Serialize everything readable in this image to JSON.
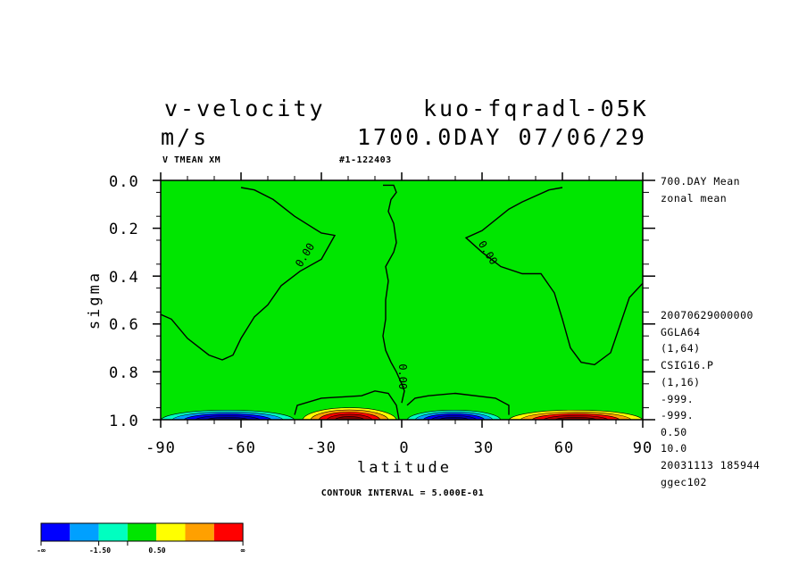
{
  "header": {
    "variable": "v-velocity",
    "experiment": "kuo-fqradl-05K",
    "units": "m/s",
    "time_label": "1700.0DAY 07/06/29",
    "field_name": "V TMEAN XM",
    "run_id": "#1-122403"
  },
  "side_info": {
    "average": "700.DAY Mean",
    "average_type": "zonal mean",
    "lines": [
      "20070629000000",
      "GGLA64",
      "(1,64)",
      "CSIG16.P",
      "(1,16)",
      "-999.",
      "-999.",
      "0.50",
      "10.0",
      "20031113 185944",
      "ggec102"
    ]
  },
  "footer": {
    "contour_interval": "CONTOUR INTERVAL = 5.000E-01"
  },
  "colors": {
    "background_field": "#00e600",
    "lines": "#000000"
  },
  "legend": {
    "colors": [
      "#0000ff",
      "#00a0ff",
      "#00ffc0",
      "#00e600",
      "#ffff00",
      "#ffa000",
      "#ff0000"
    ],
    "labels": [
      "-∞",
      "-1.50",
      "0.50",
      "∞"
    ]
  },
  "chart_data": {
    "type": "heatmap",
    "title": "v-velocity",
    "xlabel": "latitude",
    "ylabel": "sigma",
    "xlim": [
      -90,
      90
    ],
    "ylim": [
      1.0,
      0.0
    ],
    "x_ticks": [
      -90,
      -60,
      -30,
      0,
      30,
      60,
      90
    ],
    "x_tick_labels": [
      "-90",
      "-60",
      "-30",
      "0",
      "30",
      "60",
      "90"
    ],
    "y_ticks": [
      0.0,
      0.2,
      0.4,
      0.6,
      0.8,
      1.0
    ],
    "y_tick_labels": [
      "0.0",
      "0.2",
      "0.4",
      "0.6",
      "0.8",
      "1.0"
    ],
    "contour_labels": [
      "0.00",
      "0.00",
      "0.00"
    ],
    "zero_contours": [
      {
        "name": "southern",
        "points": [
          [
            -60,
            0.03
          ],
          [
            -55,
            0.04
          ],
          [
            -48,
            0.08
          ],
          [
            -40,
            0.15
          ],
          [
            -30,
            0.22
          ],
          [
            -25,
            0.23
          ],
          [
            -30,
            0.33
          ],
          [
            -38,
            0.38
          ],
          [
            -45,
            0.44
          ],
          [
            -50,
            0.52
          ],
          [
            -55,
            0.57
          ],
          [
            -60,
            0.66
          ],
          [
            -63,
            0.73
          ],
          [
            -67,
            0.75
          ],
          [
            -72,
            0.73
          ],
          [
            -80,
            0.66
          ],
          [
            -86,
            0.58
          ],
          [
            -90,
            0.56
          ]
        ]
      },
      {
        "name": "equatorial",
        "points": [
          [
            -7,
            0.02
          ],
          [
            -3,
            0.02
          ],
          [
            -2,
            0.05
          ],
          [
            -4,
            0.08
          ],
          [
            -5,
            0.13
          ],
          [
            -3,
            0.18
          ],
          [
            -2,
            0.26
          ],
          [
            -3,
            0.3
          ],
          [
            -6,
            0.36
          ],
          [
            -5,
            0.42
          ],
          [
            -6,
            0.5
          ],
          [
            -6,
            0.58
          ],
          [
            -7,
            0.65
          ],
          [
            -6,
            0.71
          ],
          [
            -4,
            0.76
          ],
          [
            -2,
            0.8
          ],
          [
            0,
            0.85
          ],
          [
            1,
            0.88
          ],
          [
            0,
            0.93
          ]
        ]
      },
      {
        "name": "northern",
        "points": [
          [
            60,
            0.03
          ],
          [
            55,
            0.04
          ],
          [
            45,
            0.09
          ],
          [
            40,
            0.12
          ],
          [
            30,
            0.21
          ],
          [
            24,
            0.24
          ],
          [
            30,
            0.3
          ],
          [
            37,
            0.36
          ],
          [
            45,
            0.39
          ],
          [
            52,
            0.39
          ],
          [
            57,
            0.47
          ],
          [
            60,
            0.58
          ],
          [
            63,
            0.7
          ],
          [
            67,
            0.76
          ],
          [
            72,
            0.77
          ],
          [
            78,
            0.72
          ],
          [
            85,
            0.49
          ],
          [
            90,
            0.43
          ]
        ]
      },
      {
        "name": "south-surface-cell",
        "points": [
          [
            -40,
            0.98
          ],
          [
            -39,
            0.94
          ],
          [
            -30,
            0.91
          ],
          [
            -15,
            0.9
          ],
          [
            -10,
            0.88
          ],
          [
            -5,
            0.89
          ],
          [
            -2,
            0.94
          ],
          [
            -1,
            1.0
          ]
        ]
      },
      {
        "name": "north-surface-cell",
        "points": [
          [
            2,
            0.94
          ],
          [
            5,
            0.91
          ],
          [
            10,
            0.9
          ],
          [
            20,
            0.89
          ],
          [
            35,
            0.91
          ],
          [
            40,
            0.94
          ],
          [
            40,
            0.98
          ]
        ]
      }
    ],
    "surface_cells": [
      {
        "name": "southern-high-lat",
        "lat_range": [
          -90,
          -40
        ],
        "sigma_top": 0.96,
        "sign": "negative",
        "min_level": "< -1.50"
      },
      {
        "name": "southern-subtropics",
        "lat_range": [
          -37,
          -2
        ],
        "sigma_top": 0.95,
        "sign": "positive",
        "max_level": "> 0.50"
      },
      {
        "name": "northern-tropics",
        "lat_range": [
          2,
          37
        ],
        "sigma_top": 0.96,
        "sign": "negative",
        "min_level": "< -1.50"
      },
      {
        "name": "northern-high-lat",
        "lat_range": [
          40,
          90
        ],
        "sigma_top": 0.96,
        "sign": "positive",
        "max_level": "> 0.50"
      }
    ]
  }
}
